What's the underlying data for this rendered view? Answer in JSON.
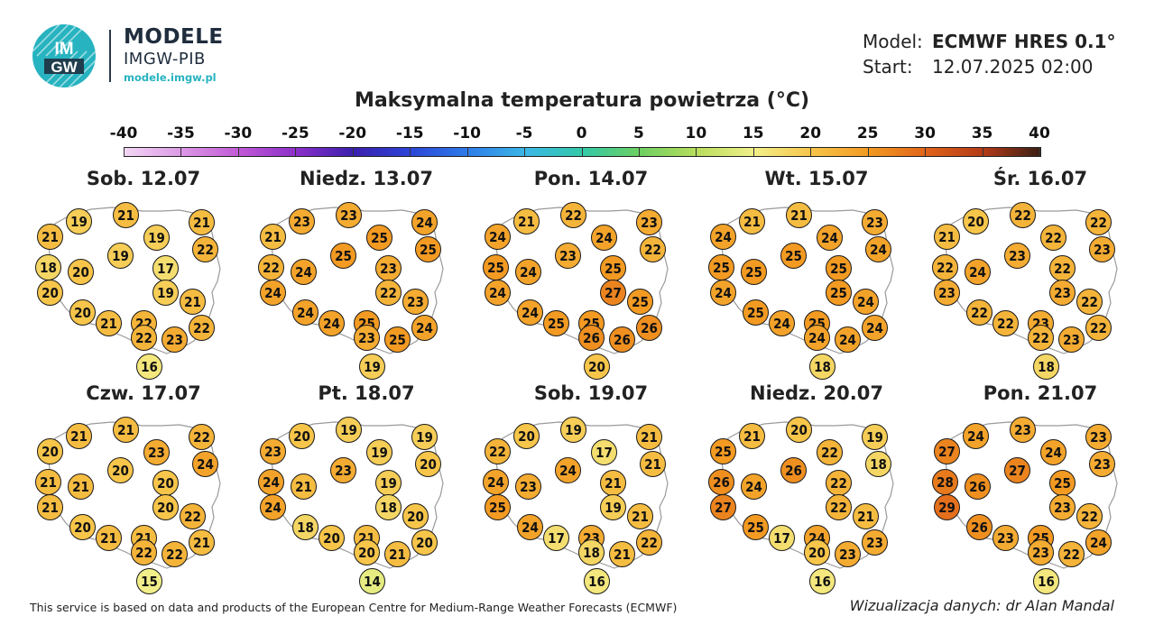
{
  "brand": {
    "logo_text": "IMGW",
    "title": "MODELE",
    "subtitle": "IMGW-PIB",
    "url": "modele.imgw.pl"
  },
  "meta": {
    "model_label": "Model:",
    "model_value": "ECMWF HRES 0.1°",
    "start_label": "Start:",
    "start_value": "12.07.2025 02:00"
  },
  "map_title": "Maksymalna temperatura powietrza (°C)",
  "colorbar": {
    "min": -40,
    "max": 40,
    "labels": [
      "-40",
      "-35",
      "-30",
      "-25",
      "-20",
      "-15",
      "-10",
      "-5",
      "0",
      "5",
      "10",
      "15",
      "20",
      "25",
      "30",
      "35",
      "40"
    ],
    "stops": [
      {
        "value": -40,
        "color": "#f4d6f4"
      },
      {
        "value": -30,
        "color": "#c15ad6"
      },
      {
        "value": -25,
        "color": "#8b2fc9"
      },
      {
        "value": -20,
        "color": "#3b1fae"
      },
      {
        "value": -15,
        "color": "#2b45d8"
      },
      {
        "value": -10,
        "color": "#2f7ce8"
      },
      {
        "value": -5,
        "color": "#3ab7e6"
      },
      {
        "value": 0,
        "color": "#33c9a8"
      },
      {
        "value": 5,
        "color": "#6dcf62"
      },
      {
        "value": 10,
        "color": "#b7de5c"
      },
      {
        "value": 15,
        "color": "#f2ef8a"
      },
      {
        "value": 20,
        "color": "#f6c54a"
      },
      {
        "value": 25,
        "color": "#f29a22"
      },
      {
        "value": 30,
        "color": "#e0641a"
      },
      {
        "value": 35,
        "color": "#b43a18"
      },
      {
        "value": 40,
        "color": "#3a1f14"
      }
    ]
  },
  "days": [
    {
      "label": "Sob. 12.07",
      "values": [
        21,
        19,
        21,
        21,
        19,
        22,
        18,
        20,
        19,
        17,
        20,
        19,
        20,
        21,
        21,
        22,
        22,
        22,
        23,
        16
      ]
    },
    {
      "label": "Niedz. 13.07",
      "values": [
        21,
        23,
        23,
        24,
        25,
        25,
        22,
        24,
        25,
        23,
        24,
        22,
        24,
        24,
        23,
        25,
        24,
        23,
        25,
        19
      ]
    },
    {
      "label": "Pon. 14.07",
      "values": [
        24,
        21,
        22,
        23,
        24,
        22,
        25,
        24,
        23,
        25,
        24,
        27,
        24,
        25,
        25,
        25,
        26,
        26,
        26,
        20
      ]
    },
    {
      "label": "Wt. 15.07",
      "values": [
        24,
        21,
        21,
        23,
        24,
        24,
        25,
        25,
        25,
        25,
        24,
        25,
        25,
        24,
        24,
        25,
        24,
        24,
        24,
        18
      ]
    },
    {
      "label": "Śr. 16.07",
      "values": [
        21,
        20,
        22,
        22,
        22,
        23,
        22,
        24,
        23,
        22,
        23,
        23,
        22,
        22,
        22,
        23,
        22,
        22,
        23,
        18
      ]
    },
    {
      "label": "Czw. 17.07",
      "values": [
        20,
        21,
        21,
        22,
        23,
        24,
        21,
        21,
        20,
        20,
        21,
        20,
        20,
        21,
        22,
        21,
        21,
        22,
        22,
        15
      ]
    },
    {
      "label": "Pt. 18.07",
      "values": [
        23,
        20,
        19,
        19,
        19,
        20,
        24,
        21,
        23,
        19,
        24,
        18,
        18,
        20,
        20,
        21,
        20,
        20,
        21,
        14
      ]
    },
    {
      "label": "Sob. 19.07",
      "values": [
        22,
        20,
        19,
        21,
        17,
        21,
        24,
        23,
        24,
        21,
        25,
        19,
        24,
        17,
        21,
        23,
        22,
        18,
        21,
        16
      ]
    },
    {
      "label": "Niedz. 20.07",
      "values": [
        25,
        21,
        20,
        19,
        22,
        18,
        26,
        24,
        26,
        22,
        27,
        22,
        25,
        17,
        21,
        24,
        23,
        20,
        23,
        16
      ]
    },
    {
      "label": "Pon. 21.07",
      "values": [
        27,
        24,
        23,
        23,
        24,
        23,
        28,
        26,
        27,
        25,
        29,
        23,
        26,
        23,
        22,
        25,
        24,
        23,
        22,
        16
      ]
    }
  ],
  "footer": {
    "left": "This service is based on data and products of the European Centre for Medium-Range Weather Forecasts (ECMWF)",
    "right": "Wizualizacja danych: dr Alan Mandal"
  }
}
